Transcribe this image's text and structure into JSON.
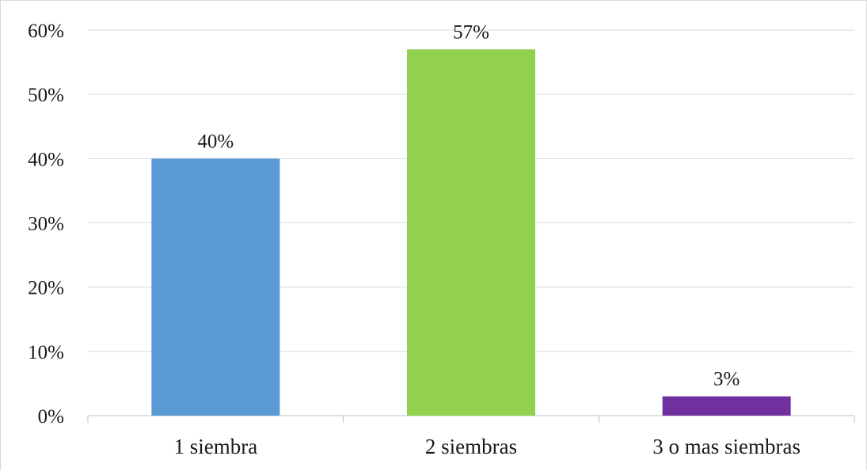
{
  "chart_data": {
    "type": "bar",
    "categories": [
      "1 siembra",
      "2 siembras",
      "3 o mas siembras"
    ],
    "values": [
      40,
      57,
      3
    ],
    "data_labels": [
      "40%",
      "57%",
      "3%"
    ],
    "colors": [
      "#5b9bd5",
      "#92d050",
      "#7030a0"
    ],
    "y_tick_labels": [
      "0%",
      "10%",
      "20%",
      "30%",
      "40%",
      "50%",
      "60%"
    ],
    "ylim": [
      0,
      60
    ],
    "grid": true,
    "legend": "none"
  }
}
